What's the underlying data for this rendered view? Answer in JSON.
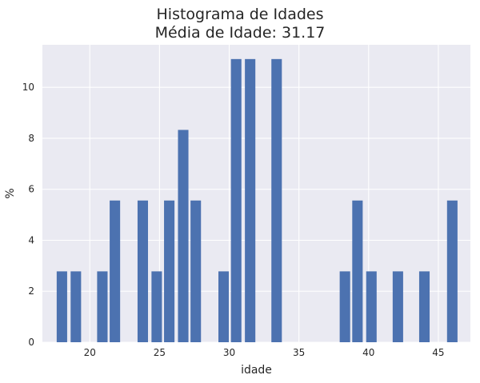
{
  "chart_data": {
    "type": "bar",
    "title": "Histograma de Idades",
    "subtitle": "Média de Idade: 31.17",
    "xlabel": "idade",
    "ylabel": "%",
    "xlim": [
      16.6,
      47.3
    ],
    "ylim": [
      0,
      11.67
    ],
    "xticks": [
      20,
      25,
      30,
      35,
      40,
      45
    ],
    "yticks": [
      0,
      2,
      4,
      6,
      8,
      10
    ],
    "bar_width": 0.75,
    "grid": true,
    "background": "#EAEAF2",
    "bar_color": "#4C72B0",
    "bars": [
      {
        "x": 18.0,
        "value": 2.78
      },
      {
        "x": 19.0,
        "value": 2.78
      },
      {
        "x": 20.9,
        "value": 2.78
      },
      {
        "x": 21.8,
        "value": 5.56
      },
      {
        "x": 23.8,
        "value": 5.56
      },
      {
        "x": 24.8,
        "value": 2.78
      },
      {
        "x": 25.7,
        "value": 5.56
      },
      {
        "x": 26.7,
        "value": 8.33
      },
      {
        "x": 27.6,
        "value": 5.56
      },
      {
        "x": 29.6,
        "value": 2.78
      },
      {
        "x": 30.5,
        "value": 11.11
      },
      {
        "x": 31.5,
        "value": 11.11
      },
      {
        "x": 33.4,
        "value": 11.11
      },
      {
        "x": 38.3,
        "value": 2.78
      },
      {
        "x": 39.2,
        "value": 5.56
      },
      {
        "x": 40.2,
        "value": 2.78
      },
      {
        "x": 42.1,
        "value": 2.78
      },
      {
        "x": 44.0,
        "value": 2.78
      },
      {
        "x": 46.0,
        "value": 5.56
      }
    ]
  }
}
